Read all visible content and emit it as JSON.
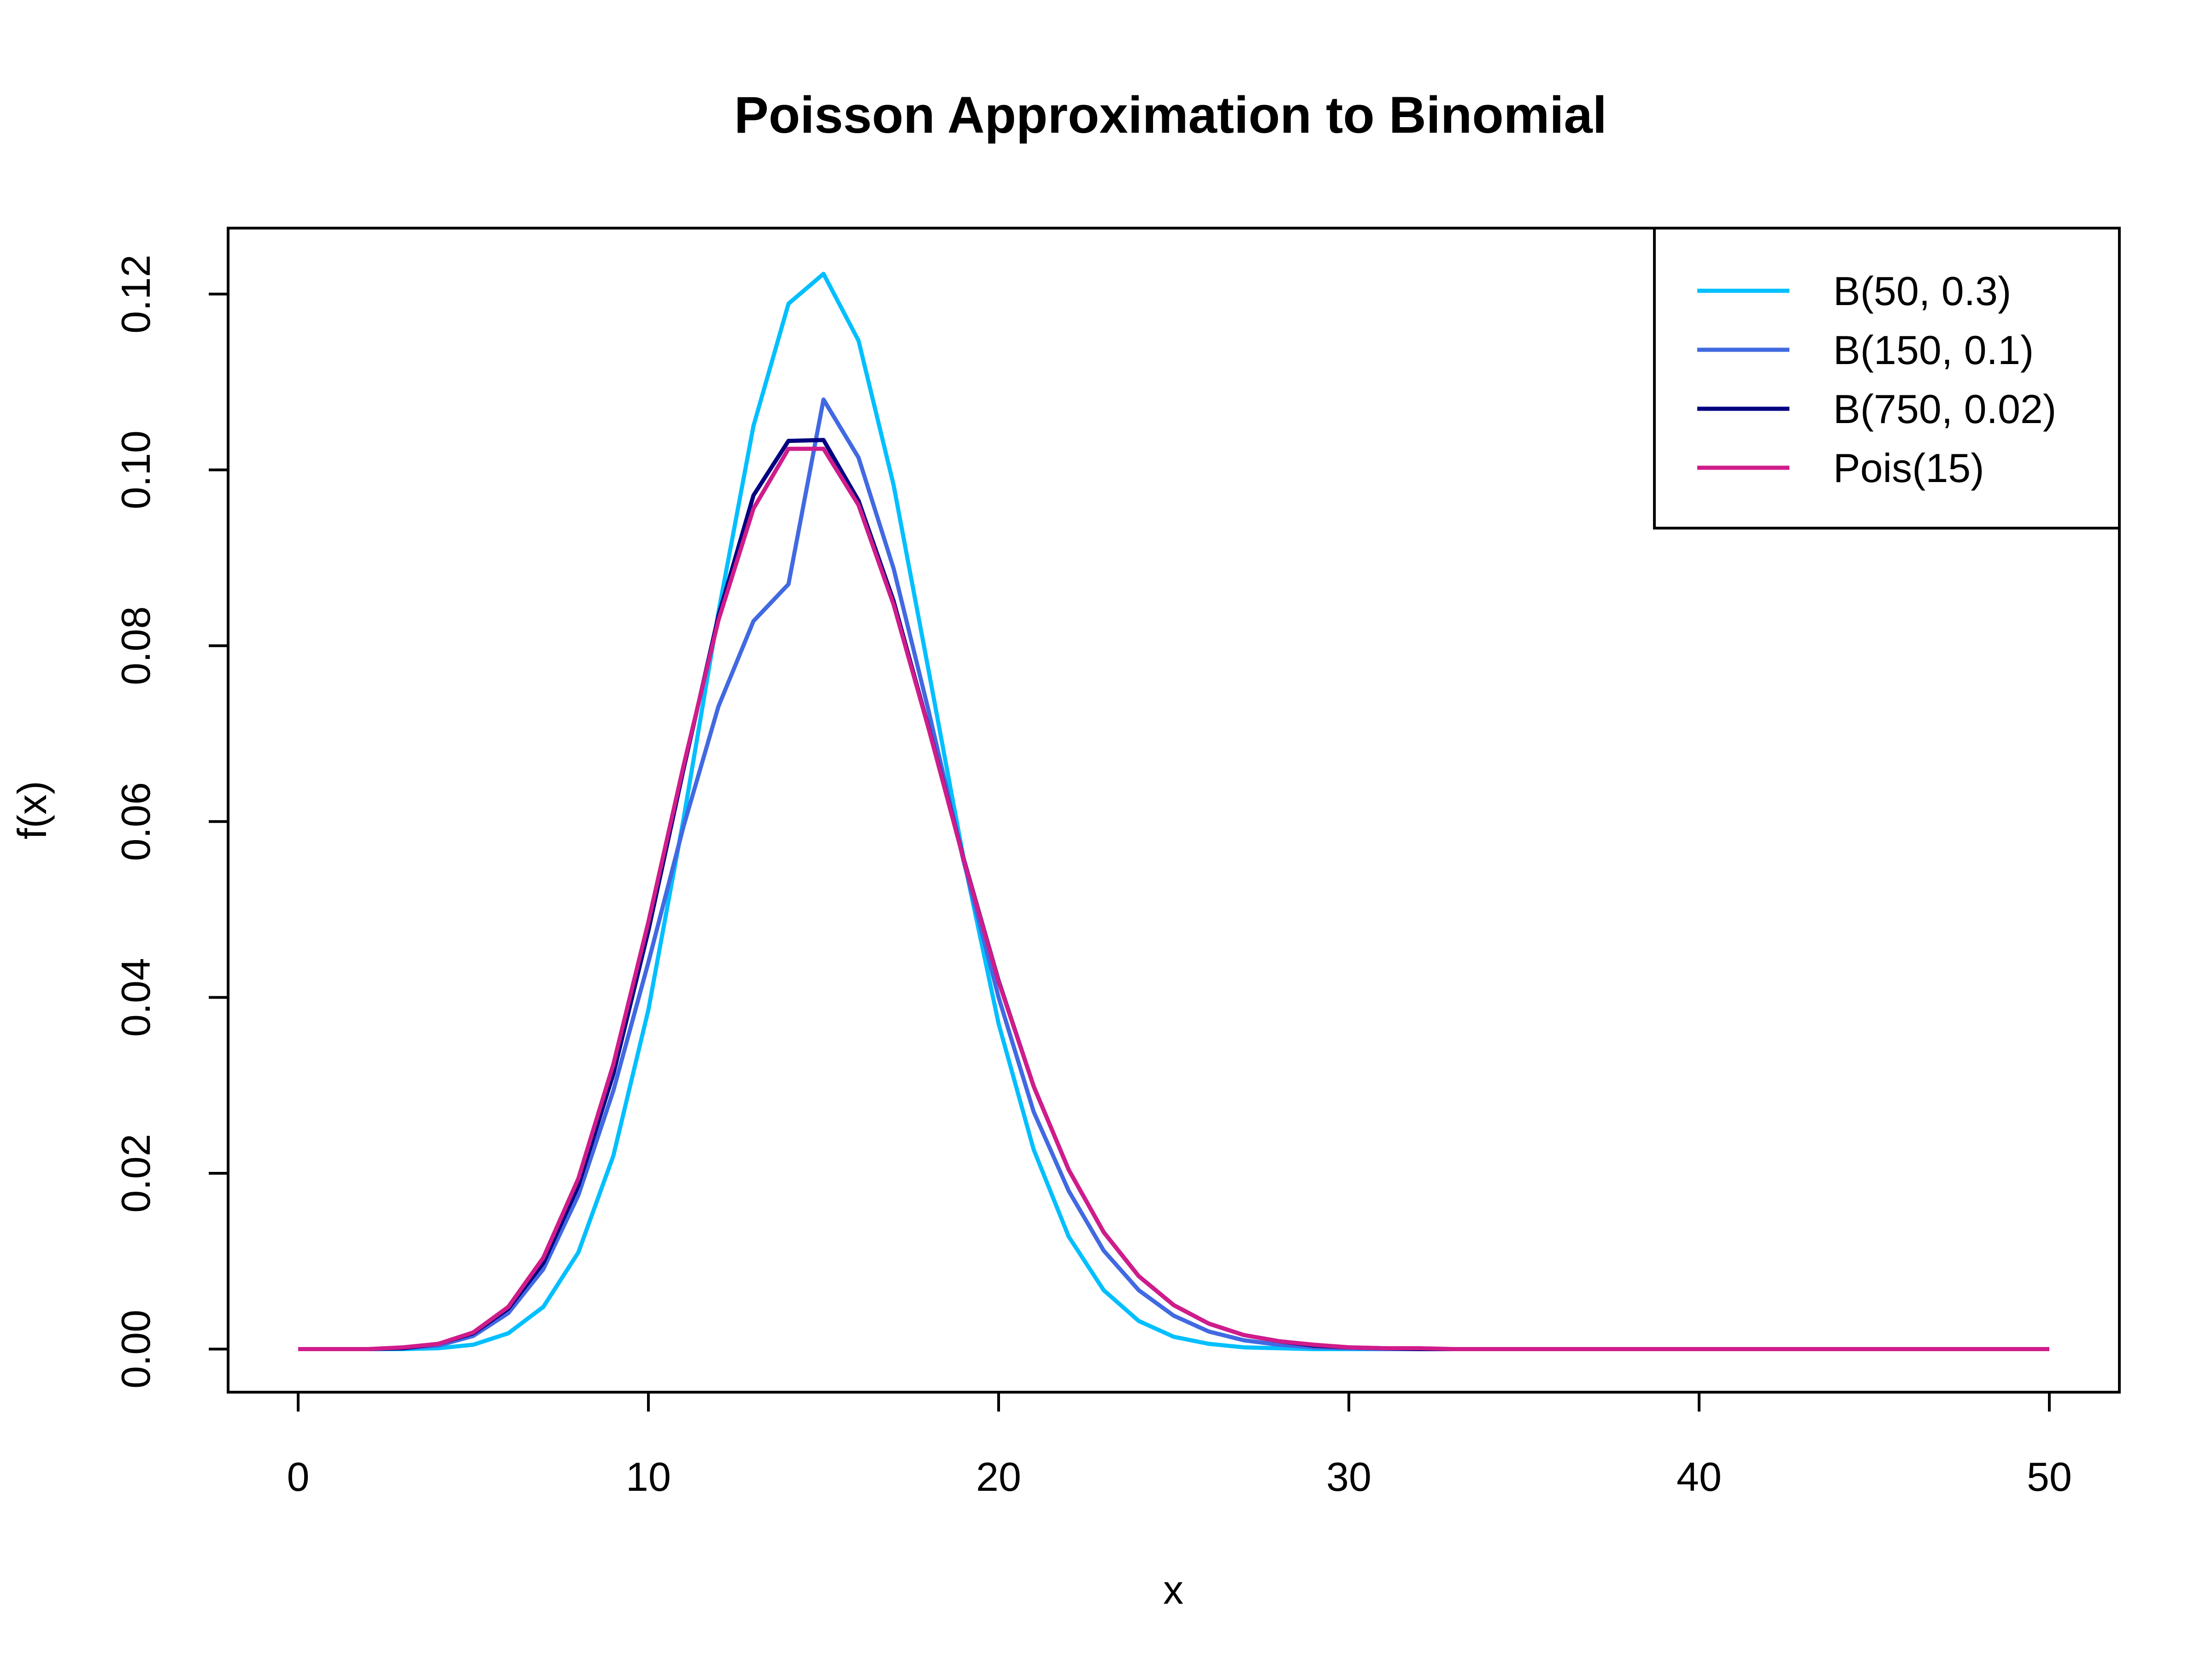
{
  "chart_data": {
    "type": "line",
    "title": "Poisson Approximation to Binomial",
    "xlabel": "x",
    "ylabel": "f(x)",
    "xlim": [
      -2,
      52
    ],
    "ylim": [
      -0.0049,
      0.1275
    ],
    "xticks": [
      0,
      10,
      20,
      30,
      40,
      50
    ],
    "yticks": [
      0.0,
      0.02,
      0.04,
      0.06,
      0.08,
      0.1,
      0.12
    ],
    "ytick_labels": [
      "0.00",
      "0.02",
      "0.04",
      "0.06",
      "0.08",
      "0.10",
      "0.12"
    ],
    "grid": false,
    "legend_position": "top-right",
    "x": [
      0,
      1,
      2,
      3,
      4,
      5,
      6,
      7,
      8,
      9,
      10,
      11,
      12,
      13,
      14,
      15,
      16,
      17,
      18,
      19,
      20,
      21,
      22,
      23,
      24,
      25,
      26,
      27,
      28,
      29,
      30,
      31,
      32,
      33,
      34,
      35,
      36,
      37,
      38,
      39,
      40,
      41,
      42,
      43,
      44,
      45,
      46,
      47,
      48,
      49,
      50
    ],
    "series": [
      {
        "name": "B(50, 0.3)",
        "color": "#00BFFF",
        "values": [
          0.0,
          0.0,
          0.0,
          0.0,
          0.0001,
          0.0005,
          0.0018,
          0.0048,
          0.011,
          0.022,
          0.0386,
          0.0602,
          0.0838,
          0.105,
          0.1189,
          0.1223,
          0.1147,
          0.0983,
          0.0772,
          0.0558,
          0.037,
          0.0227,
          0.0128,
          0.0067,
          0.0032,
          0.0014,
          0.0006,
          0.0002,
          0.0001,
          0.0,
          0.0,
          0.0,
          0.0,
          0.0,
          0.0,
          0.0,
          0.0,
          0.0,
          0.0,
          0.0,
          0.0,
          0.0,
          0.0,
          0.0,
          0.0,
          0.0,
          0.0,
          0.0,
          0.0,
          0.0,
          0.0
        ]
      },
      {
        "name": "B(150, 0.1)",
        "color": "#4169E1",
        "values": [
          0.0,
          0.0,
          0.0,
          0.0001,
          0.0004,
          0.0015,
          0.0041,
          0.0091,
          0.0175,
          0.0294,
          0.044,
          0.0594,
          0.0731,
          0.0828,
          0.087,
          0.108,
          0.1014,
          0.0888,
          0.0726,
          0.0555,
          0.04,
          0.027,
          0.018,
          0.0112,
          0.0067,
          0.0038,
          0.002,
          0.001,
          0.0005,
          0.0002,
          0.0001,
          0.0,
          0.0,
          0.0,
          0.0,
          0.0,
          0.0,
          0.0,
          0.0,
          0.0,
          0.0,
          0.0,
          0.0,
          0.0,
          0.0,
          0.0,
          0.0,
          0.0,
          0.0,
          0.0,
          0.0
        ]
      },
      {
        "name": "B(750, 0.02)",
        "color": "#000080",
        "values": [
          0.0,
          0.0,
          0.0,
          0.0001,
          0.0006,
          0.0018,
          0.0046,
          0.0098,
          0.0186,
          0.0313,
          0.0476,
          0.0659,
          0.0834,
          0.0971,
          0.1033,
          0.1034,
          0.0965,
          0.0851,
          0.0707,
          0.0558,
          0.0419,
          0.0299,
          0.0204,
          0.0133,
          0.0083,
          0.005,
          0.0029,
          0.0016,
          0.0009,
          0.0004,
          0.0002,
          0.0001,
          0.0,
          0.0,
          0.0,
          0.0,
          0.0,
          0.0,
          0.0,
          0.0,
          0.0,
          0.0,
          0.0,
          0.0,
          0.0,
          0.0,
          0.0,
          0.0,
          0.0,
          0.0,
          0.0
        ]
      },
      {
        "name": "Pois(15)",
        "color": "#D01C8B",
        "values": [
          0.0,
          0.0,
          0.0,
          0.0002,
          0.0006,
          0.0019,
          0.0048,
          0.0104,
          0.0194,
          0.0324,
          0.0486,
          0.0663,
          0.0829,
          0.0956,
          0.1024,
          0.1024,
          0.096,
          0.0847,
          0.0706,
          0.0557,
          0.0418,
          0.0299,
          0.0204,
          0.0133,
          0.0083,
          0.005,
          0.0029,
          0.0016,
          0.0009,
          0.0005,
          0.0002,
          0.0001,
          0.0001,
          0.0,
          0.0,
          0.0,
          0.0,
          0.0,
          0.0,
          0.0,
          0.0,
          0.0,
          0.0,
          0.0,
          0.0,
          0.0,
          0.0,
          0.0,
          0.0,
          0.0,
          0.0
        ]
      }
    ]
  }
}
